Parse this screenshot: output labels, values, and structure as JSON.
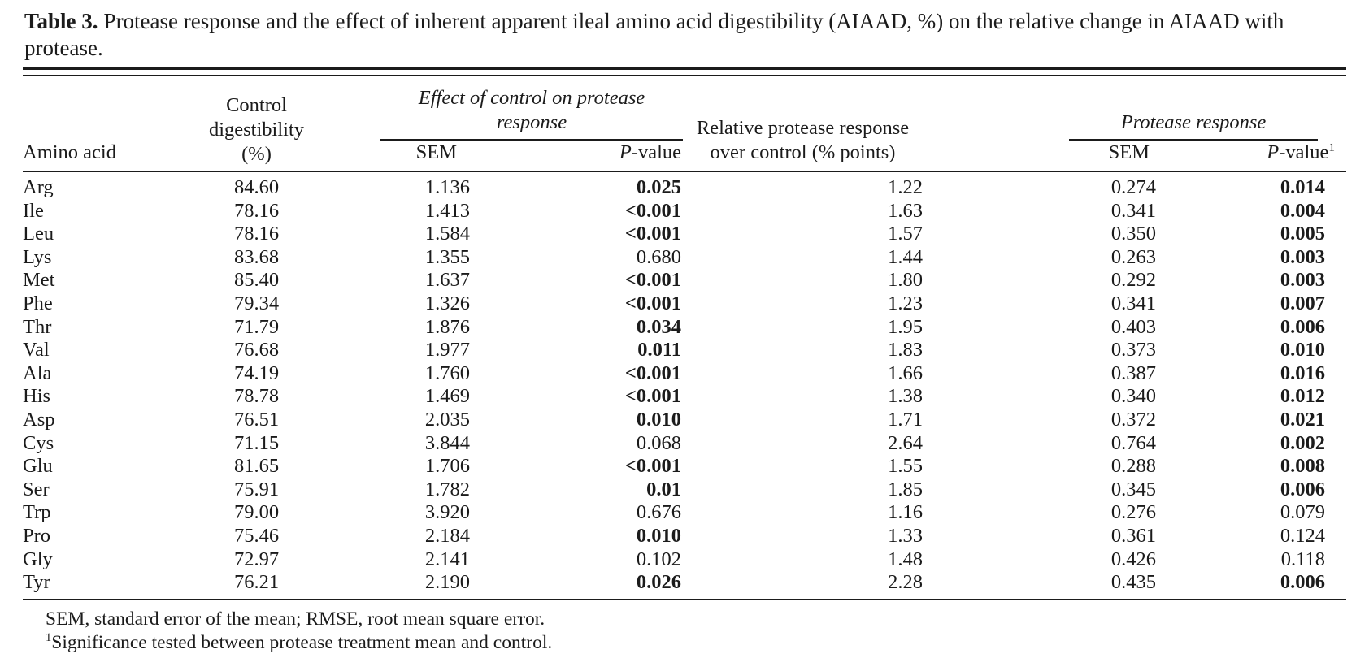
{
  "title": {
    "label": "Table 3.",
    "text": "Protease response and the effect of inherent apparent ileal amino acid digestibility (AIAAD, %) on the relative change in AIAAD with protease."
  },
  "table": {
    "headers": {
      "amino_acid": "Amino acid",
      "control": "Control\ndigestibility\n(%)",
      "effect_spanner": "Effect of control on protease\nresponse",
      "relative": "Relative protease response\nover control (% points)",
      "protease_spanner": "Protease response",
      "sem": "SEM",
      "p_italic": "P",
      "p_rest": "-value",
      "p_sup": "1"
    },
    "rows": [
      {
        "aa": "Arg",
        "control": "84.60",
        "sem1": "1.136",
        "p1": "0.025",
        "p1_bold": true,
        "rel": "1.22",
        "sem2": "0.274",
        "p2": "0.014",
        "p2_bold": true
      },
      {
        "aa": "Ile",
        "control": "78.16",
        "sem1": "1.413",
        "p1": "<0.001",
        "p1_bold": true,
        "rel": "1.63",
        "sem2": "0.341",
        "p2": "0.004",
        "p2_bold": true
      },
      {
        "aa": "Leu",
        "control": "78.16",
        "sem1": "1.584",
        "p1": "<0.001",
        "p1_bold": true,
        "rel": "1.57",
        "sem2": "0.350",
        "p2": "0.005",
        "p2_bold": true
      },
      {
        "aa": "Lys",
        "control": "83.68",
        "sem1": "1.355",
        "p1": "0.680",
        "p1_bold": false,
        "rel": "1.44",
        "sem2": "0.263",
        "p2": "0.003",
        "p2_bold": true
      },
      {
        "aa": "Met",
        "control": "85.40",
        "sem1": "1.637",
        "p1": "<0.001",
        "p1_bold": true,
        "rel": "1.80",
        "sem2": "0.292",
        "p2": "0.003",
        "p2_bold": true
      },
      {
        "aa": "Phe",
        "control": "79.34",
        "sem1": "1.326",
        "p1": "<0.001",
        "p1_bold": true,
        "rel": "1.23",
        "sem2": "0.341",
        "p2": "0.007",
        "p2_bold": true
      },
      {
        "aa": "Thr",
        "control": "71.79",
        "sem1": "1.876",
        "p1": "0.034",
        "p1_bold": true,
        "rel": "1.95",
        "sem2": "0.403",
        "p2": "0.006",
        "p2_bold": true
      },
      {
        "aa": "Val",
        "control": "76.68",
        "sem1": "1.977",
        "p1": "0.011",
        "p1_bold": true,
        "rel": "1.83",
        "sem2": "0.373",
        "p2": "0.010",
        "p2_bold": true
      },
      {
        "aa": "Ala",
        "control": "74.19",
        "sem1": "1.760",
        "p1": "<0.001",
        "p1_bold": true,
        "rel": "1.66",
        "sem2": "0.387",
        "p2": "0.016",
        "p2_bold": true
      },
      {
        "aa": "His",
        "control": "78.78",
        "sem1": "1.469",
        "p1": "<0.001",
        "p1_bold": true,
        "rel": "1.38",
        "sem2": "0.340",
        "p2": "0.012",
        "p2_bold": true
      },
      {
        "aa": "Asp",
        "control": "76.51",
        "sem1": "2.035",
        "p1": "0.010",
        "p1_bold": true,
        "rel": "1.71",
        "sem2": "0.372",
        "p2": "0.021",
        "p2_bold": true
      },
      {
        "aa": "Cys",
        "control": "71.15",
        "sem1": "3.844",
        "p1": "0.068",
        "p1_bold": false,
        "rel": "2.64",
        "sem2": "0.764",
        "p2": "0.002",
        "p2_bold": true
      },
      {
        "aa": "Glu",
        "control": "81.65",
        "sem1": "1.706",
        "p1": "<0.001",
        "p1_bold": true,
        "rel": "1.55",
        "sem2": "0.288",
        "p2": "0.008",
        "p2_bold": true
      },
      {
        "aa": "Ser",
        "control": "75.91",
        "sem1": "1.782",
        "p1": "0.01",
        "p1_bold": true,
        "rel": "1.85",
        "sem2": "0.345",
        "p2": "0.006",
        "p2_bold": true
      },
      {
        "aa": "Trp",
        "control": "79.00",
        "sem1": "3.920",
        "p1": "0.676",
        "p1_bold": false,
        "rel": "1.16",
        "sem2": "0.276",
        "p2": "0.079",
        "p2_bold": false
      },
      {
        "aa": "Pro",
        "control": "75.46",
        "sem1": "2.184",
        "p1": "0.010",
        "p1_bold": true,
        "rel": "1.33",
        "sem2": "0.361",
        "p2": "0.124",
        "p2_bold": false
      },
      {
        "aa": "Gly",
        "control": "72.97",
        "sem1": "2.141",
        "p1": "0.102",
        "p1_bold": false,
        "rel": "1.48",
        "sem2": "0.426",
        "p2": "0.118",
        "p2_bold": false
      },
      {
        "aa": "Tyr",
        "control": "76.21",
        "sem1": "2.190",
        "p1": "0.026",
        "p1_bold": true,
        "rel": "2.28",
        "sem2": "0.435",
        "p2": "0.006",
        "p2_bold": true
      }
    ]
  },
  "footnotes": {
    "abbrev": "SEM, standard error of the mean; RMSE, root mean square error.",
    "sig_sup": "1",
    "sig_text": "Significance tested between protease treatment mean and control."
  }
}
